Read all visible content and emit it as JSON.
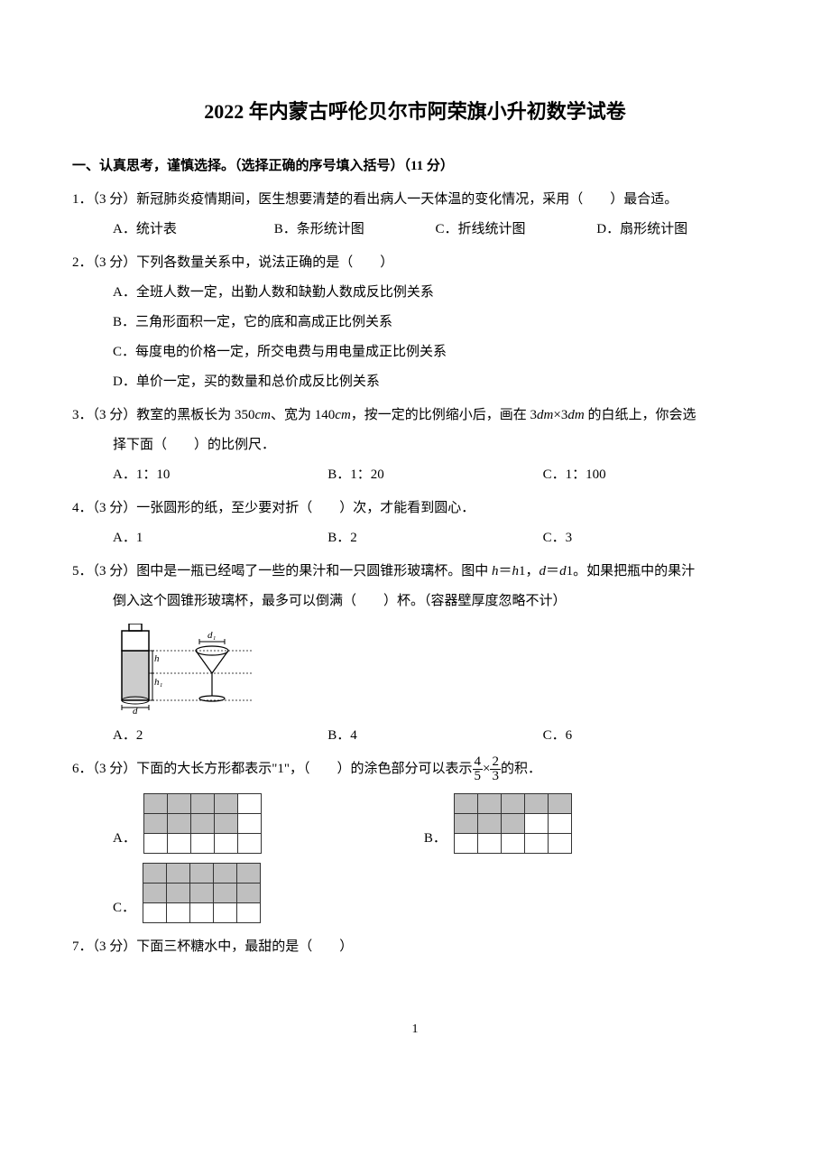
{
  "title": "2022 年内蒙古呼伦贝尔市阿荣旗小升初数学试卷",
  "section1": {
    "header": "一、认真思考，谨慎选择。（选择正确的序号填入括号）（11 分）"
  },
  "q1": {
    "text": "1．（3 分）新冠肺炎疫情期间，医生想要清楚的看出病人一天体温的变化情况，采用（　　）最合适。",
    "a": "A．统计表",
    "b": "B．条形统计图",
    "c": "C．折线统计图",
    "d": "D．扇形统计图"
  },
  "q2": {
    "text": "2．（3 分）下列各数量关系中，说法正确的是（　　）",
    "a": "A．全班人数一定，出勤人数和缺勤人数成反比例关系",
    "b": "B．三角形面积一定，它的底和高成正比例关系",
    "c": "C．每度电的价格一定，所交电费与用电量成正比例关系",
    "d": "D．单价一定，买的数量和总价成反比例关系"
  },
  "q3": {
    "text_before": "3．（3 分）教室的黑板长为 350",
    "cm1": "cm",
    "text_mid1": "、宽为 140",
    "cm2": "cm",
    "text_mid2": "，按一定的比例缩小后，画在 3",
    "dm1": "dm",
    "times": "×3",
    "dm2": "dm",
    "text_after": " 的白纸上，你会选",
    "cont": "择下面（　　）的比例尺．",
    "a": "A．1：10",
    "b": "B．1：20",
    "c": "C．1：100"
  },
  "q4": {
    "text": "4．（3 分）一张圆形的纸，至少要对折（　　）次，才能看到圆心．",
    "a": "A．1",
    "b": "B．2",
    "c": "C．3"
  },
  "q5": {
    "text_before": "5．（3 分）图中是一瓶已经喝了一些的果汁和一只圆锥形玻璃杯。图中 ",
    "h": "h",
    "eq1": "＝",
    "h1": "h",
    "one1": "1，",
    "d": "d",
    "eq2": "＝",
    "d1": "d",
    "one2": "1。如果把瓶中的果汁",
    "cont": "倒入这个圆锥形玻璃杯，最多可以倒满（　　）杯。（容器壁厚度忽略不计）",
    "a": "A．2",
    "b": "B．4",
    "c": "C．6",
    "fig_labels": {
      "d1_top": "d₁",
      "h_mid": "h",
      "h1_bot": "h₁",
      "d_bot": "d"
    }
  },
  "q6": {
    "text_before": "6．（3 分）下面的大长方形都表示\"1\"，（　　）的涂色部分可以表示",
    "frac1_num": "4",
    "frac1_den": "5",
    "times": "×",
    "frac2_num": "2",
    "frac2_den": "3",
    "text_after": "的积．",
    "a": "A．",
    "b": "B．",
    "c": "C．",
    "grids": {
      "a_pattern": [
        [
          1,
          1,
          1,
          1,
          0
        ],
        [
          1,
          1,
          1,
          1,
          0
        ],
        [
          0,
          0,
          0,
          0,
          0
        ]
      ],
      "b_pattern": [
        [
          1,
          1,
          1,
          1,
          1
        ],
        [
          1,
          1,
          1,
          0,
          0
        ],
        [
          0,
          0,
          0,
          0,
          0
        ]
      ],
      "c_pattern": [
        [
          1,
          1,
          1,
          1,
          1
        ],
        [
          1,
          1,
          1,
          1,
          1
        ],
        [
          0,
          0,
          0,
          0,
          0
        ]
      ]
    }
  },
  "q7": {
    "text": "7．（3 分）下面三杯糖水中，最甜的是（　　）"
  },
  "page_number": "1",
  "colors": {
    "text": "#000000",
    "background": "#ffffff",
    "shaded": "#bfbfbf",
    "border": "#333333"
  }
}
